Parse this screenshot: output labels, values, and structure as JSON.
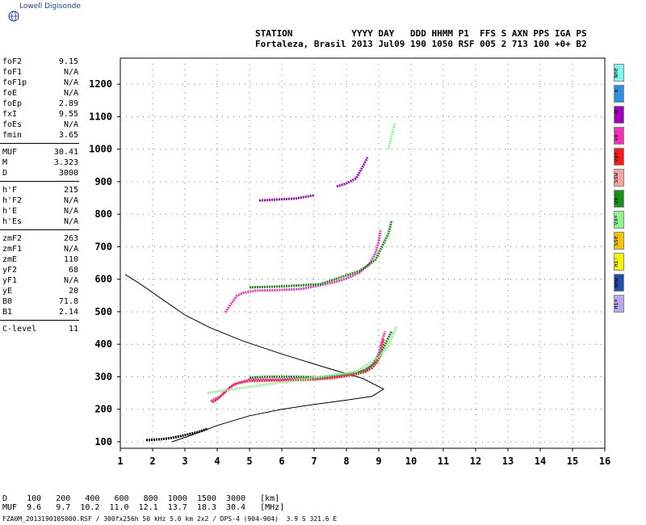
{
  "brand": {
    "name": "Lowell Digisonde",
    "logo_icon": "globe-icon"
  },
  "header": {
    "line1": "STATION           YYYY DAY   DDD HHMM P1  FFS S AXN PPS IGA PS",
    "line2": "Fortaleza, Brasil 2013 Jul09 190 1050 RSF 005 2 713 100 +0+ B2"
  },
  "params": {
    "group1": [
      {
        "label": "foF2",
        "value": "9.15"
      },
      {
        "label": "foF1",
        "value": "N/A"
      },
      {
        "label": "foF1p",
        "value": "N/A"
      },
      {
        "label": "foE",
        "value": "N/A"
      },
      {
        "label": "foEp",
        "value": "2.89"
      },
      {
        "label": "fxI",
        "value": "9.55"
      },
      {
        "label": "foEs",
        "value": "N/A"
      },
      {
        "label": "fmin",
        "value": "3.65"
      }
    ],
    "group2": [
      {
        "label": "MUF",
        "value": "30.41"
      },
      {
        "label": "M",
        "value": "3.323"
      },
      {
        "label": "D",
        "value": "3000"
      }
    ],
    "group3": [
      {
        "label": "h'F",
        "value": "215"
      },
      {
        "label": "h'F2",
        "value": "N/A"
      },
      {
        "label": "h'E",
        "value": "N/A"
      },
      {
        "label": "h'Es",
        "value": "N/A"
      }
    ],
    "group4": [
      {
        "label": "zmF2",
        "value": "263"
      },
      {
        "label": "zmF1",
        "value": "N/A"
      },
      {
        "label": "zmE",
        "value": "110"
      },
      {
        "label": "yF2",
        "value": "68"
      },
      {
        "label": "yF1",
        "value": "N/A"
      },
      {
        "label": "yE",
        "value": "20"
      },
      {
        "label": "B0",
        "value": "71.8"
      },
      {
        "label": "B1",
        "value": "2.14"
      }
    ],
    "group5": [
      {
        "label": "C-level",
        "value": "11"
      }
    ]
  },
  "legend": [
    {
      "label": "Nne",
      "color": "#7ff7f2"
    },
    {
      "label": "E",
      "color": "#2e8fe0"
    },
    {
      "label": "W",
      "color": "#a000b8"
    },
    {
      "label": "Vo-",
      "color": "#f22fb6"
    },
    {
      "label": "Vo+",
      "color": "#f51b1b"
    },
    {
      "label": "Ssw",
      "color": "#f5a3a3"
    },
    {
      "label": "Vx-",
      "color": "#1b8f1b"
    },
    {
      "label": "Vx+",
      "color": "#8ff78f"
    },
    {
      "label": "Sse",
      "color": "#f5c400"
    },
    {
      "label": "Hi-",
      "color": "#f5f500"
    },
    {
      "label": "Nnw",
      "color": "#1f4fa8"
    },
    {
      "label": "Hi+",
      "color": "#b8a8f2"
    }
  ],
  "chart_data": {
    "type": "scatter",
    "xlim": [
      1,
      16
    ],
    "ylim": [
      80,
      1280
    ],
    "x_ticks": [
      "1",
      "2",
      "3",
      "4",
      "5",
      "6",
      "7",
      "8",
      "9",
      "10",
      "11",
      "12",
      "13",
      "14",
      "15",
      "16"
    ],
    "y_ticks": [
      "100",
      "200",
      "300",
      "400",
      "500",
      "600",
      "700",
      "800",
      "900",
      "1000",
      "1100",
      "1200"
    ],
    "grid": true,
    "profile": [
      [
        2.6,
        100
      ],
      [
        3.2,
        120
      ],
      [
        4.0,
        150
      ],
      [
        5.0,
        180
      ],
      [
        6.0,
        200
      ],
      [
        7.0,
        215
      ],
      [
        8.0,
        228
      ],
      [
        8.8,
        240
      ],
      [
        9.15,
        262
      ],
      [
        8.5,
        295
      ],
      [
        7.3,
        330
      ],
      [
        6.0,
        370
      ],
      [
        4.8,
        410
      ],
      [
        3.8,
        450
      ],
      [
        3.0,
        490
      ],
      [
        2.2,
        545
      ],
      [
        1.7,
        580
      ],
      [
        1.15,
        615
      ]
    ],
    "traces": [
      {
        "color": "#f51b1b",
        "points": [
          [
            3.85,
            222
          ],
          [
            4.0,
            230
          ],
          [
            4.2,
            250
          ],
          [
            4.4,
            268
          ],
          [
            4.6,
            280
          ],
          [
            5.0,
            287
          ],
          [
            5.5,
            288
          ],
          [
            6.0,
            289
          ],
          [
            6.5,
            290
          ],
          [
            7.0,
            292
          ],
          [
            7.5,
            295
          ],
          [
            8.0,
            302
          ],
          [
            8.3,
            308
          ],
          [
            8.6,
            316
          ],
          [
            8.8,
            328
          ],
          [
            8.95,
            345
          ],
          [
            9.05,
            365
          ],
          [
            9.1,
            390
          ],
          [
            9.15,
            415
          ]
        ]
      },
      {
        "color": "#f22fb6",
        "points": [
          [
            3.8,
            225
          ],
          [
            4.1,
            240
          ],
          [
            4.5,
            275
          ],
          [
            5.0,
            292
          ],
          [
            6.0,
            292
          ],
          [
            7.0,
            295
          ],
          [
            8.0,
            305
          ],
          [
            8.5,
            318
          ],
          [
            8.8,
            335
          ],
          [
            9.0,
            370
          ],
          [
            9.1,
            410
          ],
          [
            9.2,
            440
          ]
        ]
      },
      {
        "color": "#1b8f1b",
        "points": [
          [
            5.0,
            298
          ],
          [
            5.6,
            300
          ],
          [
            6.4,
            300
          ],
          [
            7.2,
            298
          ],
          [
            8.0,
            308
          ],
          [
            8.6,
            320
          ],
          [
            8.9,
            345
          ],
          [
            9.1,
            380
          ],
          [
            9.3,
            420
          ],
          [
            9.4,
            440
          ]
        ]
      },
      {
        "color": "#8ff78f",
        "points": [
          [
            3.7,
            250
          ],
          [
            4.0,
            255
          ],
          [
            8.3,
            315
          ],
          [
            9.0,
            360
          ],
          [
            9.3,
            395
          ],
          [
            9.45,
            430
          ],
          [
            9.55,
            455
          ]
        ]
      },
      {
        "color": "#f22fb6",
        "points": [
          [
            4.25,
            498
          ],
          [
            4.4,
            520
          ],
          [
            4.6,
            548
          ],
          [
            4.8,
            558
          ],
          [
            5.2,
            565
          ],
          [
            6.0,
            567
          ],
          [
            6.6,
            570
          ],
          [
            7.0,
            578
          ],
          [
            7.6,
            590
          ],
          [
            8.0,
            602
          ],
          [
            8.4,
            620
          ],
          [
            8.7,
            645
          ],
          [
            8.9,
            680
          ],
          [
            9.0,
            715
          ],
          [
            9.05,
            750
          ]
        ]
      },
      {
        "color": "#1b8f1b",
        "points": [
          [
            5.0,
            575
          ],
          [
            6.0,
            578
          ],
          [
            7.2,
            585
          ],
          [
            8.4,
            625
          ],
          [
            8.9,
            660
          ],
          [
            9.1,
            700
          ],
          [
            9.3,
            740
          ],
          [
            9.4,
            780
          ]
        ]
      },
      {
        "color": "#a000b8",
        "points": [
          [
            5.3,
            842
          ],
          [
            5.8,
            845
          ],
          [
            6.4,
            848
          ],
          [
            7.0,
            858
          ]
        ]
      },
      {
        "color": "#a000b8",
        "points": [
          [
            7.7,
            885
          ],
          [
            8.0,
            895
          ],
          [
            8.3,
            910
          ],
          [
            8.5,
            945
          ],
          [
            8.65,
            975
          ]
        ]
      },
      {
        "color": "#8ff78f",
        "points": [
          [
            9.3,
            1000
          ],
          [
            9.4,
            1040
          ],
          [
            9.5,
            1080
          ]
        ]
      },
      {
        "color": "#000000",
        "points": [
          [
            1.8,
            105
          ],
          [
            2.3,
            108
          ],
          [
            2.6,
            112
          ],
          [
            2.9,
            118
          ],
          [
            3.1,
            123
          ],
          [
            3.4,
            130
          ],
          [
            3.7,
            140
          ]
        ]
      }
    ]
  },
  "footer": {
    "line1": "D    100   200   400   600   800  1000  1500  3000   [km]",
    "line2": "MUF  9.6   9.7  10.2  11.0  12.1  13.7  18.3  30.4   [MHz]",
    "line3": "FZA0M_2013190105000.RSF / 300fx256h 50 kHz 5.0 km 2x2 / DPS-4 (904-904)  3.9 S 321.6 E"
  }
}
